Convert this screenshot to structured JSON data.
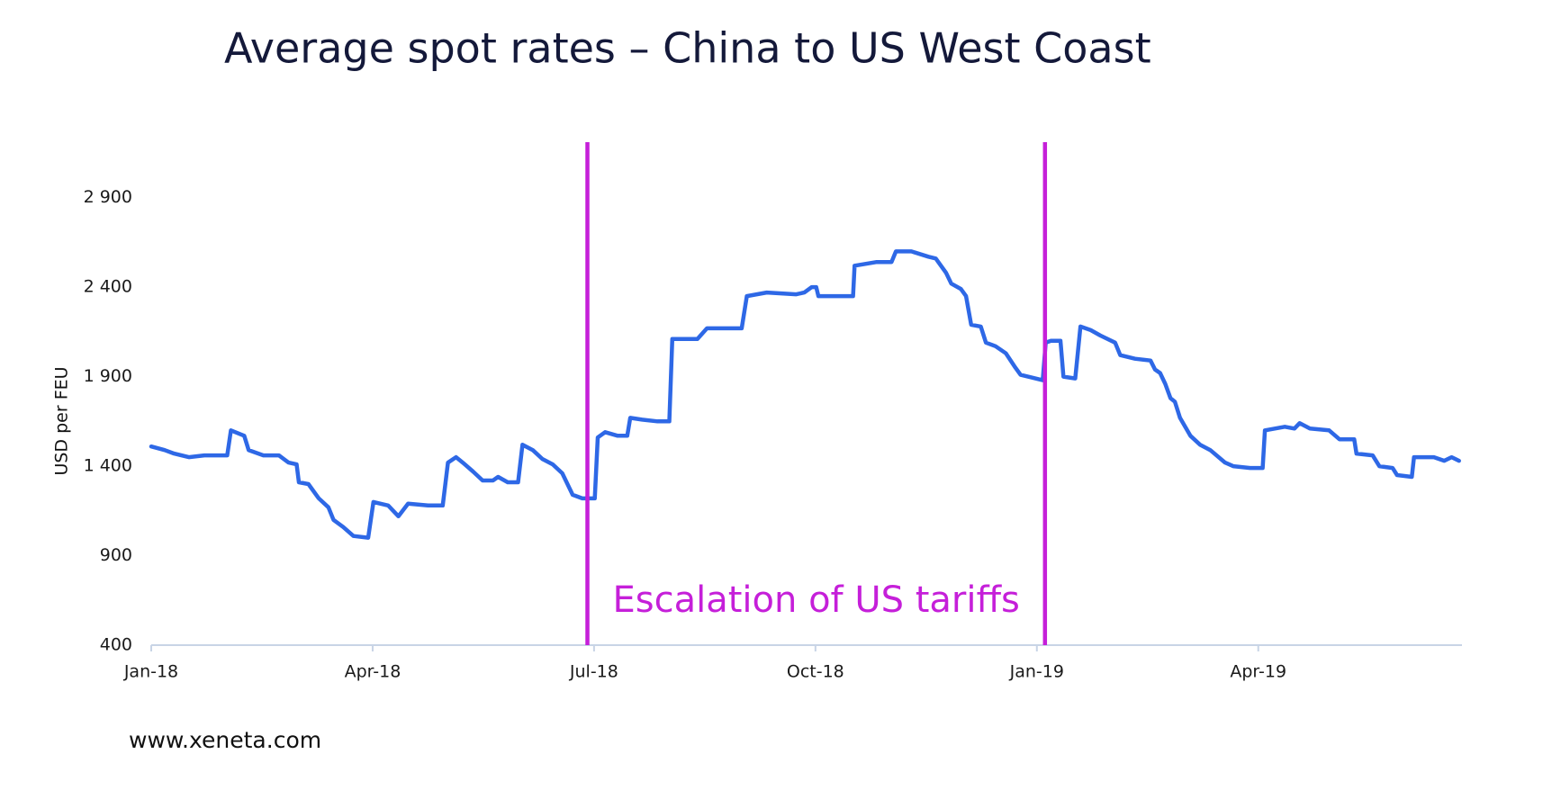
{
  "chart_data": {
    "type": "line",
    "title": "Average spot rates – China to US West Coast",
    "y_label": "USD per FEU",
    "color": "#2e68e6",
    "xlim": [
      0,
      17.76
    ],
    "xticks": [
      {
        "value": 0,
        "label": "Jan-18"
      },
      {
        "value": 3,
        "label": "Apr-18"
      },
      {
        "value": 6,
        "label": "Jul-18"
      },
      {
        "value": 9,
        "label": "Oct-18"
      },
      {
        "value": 12,
        "label": "Jan-19"
      },
      {
        "value": 15,
        "label": "Apr-19"
      }
    ],
    "ylim": [
      400,
      3200
    ],
    "yticks": [
      400,
      900,
      {
        "value": 1400,
        "label": "1 400"
      },
      {
        "value": 1900,
        "label": "1 900"
      },
      {
        "value": 2400,
        "label": "2 400"
      },
      {
        "value": 2900,
        "label": "2 900"
      }
    ],
    "grid": false,
    "x": [
      0,
      0.18,
      0.31,
      0.51,
      0.72,
      1.03,
      1.08,
      1.26,
      1.32,
      1.52,
      1.73,
      1.86,
      1.97,
      2.0,
      2.13,
      2.27,
      2.4,
      2.47,
      2.6,
      2.74,
      2.94,
      3.01,
      3.21,
      3.35,
      3.48,
      3.75,
      3.95,
      4.02,
      4.13,
      4.22,
      4.36,
      4.49,
      4.63,
      4.7,
      4.83,
      4.97,
      5.03,
      5.17,
      5.3,
      5.44,
      5.57,
      5.71,
      5.84,
      6.01,
      6.05,
      6.15,
      6.32,
      6.45,
      6.49,
      6.65,
      6.86,
      7.02,
      7.06,
      7.4,
      7.53,
      8.0,
      8.07,
      8.34,
      8.74,
      8.85,
      8.95,
      9.01,
      9.04,
      9.15,
      9.51,
      9.53,
      9.82,
      10.03,
      10.09,
      10.3,
      10.53,
      10.63,
      10.77,
      10.84,
      10.97,
      11.04,
      11.11,
      11.24,
      11.31,
      11.44,
      11.58,
      11.71,
      11.78,
      11.98,
      12.08,
      12.12,
      12.19,
      12.32,
      12.36,
      12.52,
      12.59,
      12.73,
      12.86,
      13.06,
      13.13,
      13.33,
      13.54,
      13.6,
      13.67,
      13.74,
      13.81,
      13.87,
      13.94,
      14.08,
      14.21,
      14.35,
      14.55,
      14.66,
      14.89,
      15.06,
      15.09,
      15.36,
      15.49,
      15.56,
      15.7,
      15.96,
      16.1,
      16.3,
      16.33,
      16.55,
      16.64,
      16.82,
      16.88,
      17.08,
      17.11,
      17.25,
      17.38,
      17.52,
      17.62,
      17.72
    ],
    "values": [
      1510,
      1490,
      1470,
      1450,
      1460,
      1460,
      1600,
      1570,
      1490,
      1460,
      1460,
      1420,
      1410,
      1310,
      1300,
      1220,
      1170,
      1100,
      1060,
      1010,
      1000,
      1200,
      1180,
      1120,
      1190,
      1180,
      1180,
      1420,
      1450,
      1420,
      1370,
      1320,
      1320,
      1340,
      1310,
      1310,
      1520,
      1490,
      1440,
      1410,
      1360,
      1240,
      1220,
      1220,
      1560,
      1590,
      1570,
      1570,
      1670,
      1660,
      1650,
      1650,
      2110,
      2110,
      2170,
      2170,
      2350,
      2370,
      2360,
      2370,
      2400,
      2400,
      2350,
      2350,
      2350,
      2520,
      2540,
      2540,
      2600,
      2600,
      2570,
      2560,
      2480,
      2420,
      2390,
      2350,
      2190,
      2180,
      2090,
      2070,
      2030,
      1950,
      1910,
      1890,
      1880,
      2090,
      2100,
      2100,
      1900,
      1890,
      2180,
      2160,
      2130,
      2090,
      2020,
      2000,
      1990,
      1940,
      1920,
      1860,
      1780,
      1760,
      1670,
      1570,
      1520,
      1490,
      1420,
      1400,
      1390,
      1390,
      1600,
      1620,
      1610,
      1640,
      1610,
      1600,
      1550,
      1550,
      1470,
      1460,
      1400,
      1390,
      1350,
      1340,
      1450,
      1450,
      1450,
      1430,
      1450,
      1430
    ],
    "events": [
      {
        "x": 5.91
      },
      {
        "x": 12.11
      }
    ],
    "event_color": "#c51fd9",
    "annotation": "Escalation of US tariffs"
  },
  "footer": "www.xeneta.com"
}
